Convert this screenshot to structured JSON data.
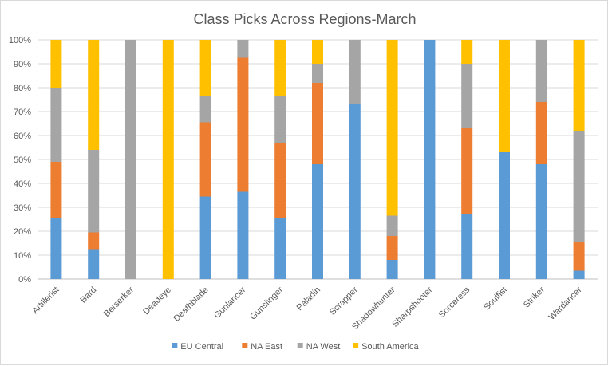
{
  "chart_data": {
    "type": "bar",
    "stacked": "percent",
    "title": "Class Picks Across Regions-March",
    "categories": [
      "Artillerist",
      "Bard",
      "Berserker",
      "Deadeye",
      "Deathblade",
      "Gunlancer",
      "Gunslinger",
      "Paladin",
      "Scrapper",
      "Shadowhunter",
      "Sharpshooter",
      "Sorceress",
      "Soulfist",
      "Striker",
      "Wardancer"
    ],
    "series": [
      {
        "name": "EU Central",
        "color": "#5b9bd5",
        "values": [
          25.5,
          12.5,
          0,
          0,
          34.5,
          36.5,
          25.5,
          48,
          73,
          8,
          100,
          27,
          53,
          48,
          3.5
        ]
      },
      {
        "name": "NA East",
        "color": "#ed7d31",
        "values": [
          23.5,
          7,
          0,
          0,
          31,
          56,
          31.5,
          34,
          0,
          10,
          0,
          36,
          0,
          26,
          12
        ]
      },
      {
        "name": "NA West",
        "color": "#a5a5a5",
        "values": [
          31,
          34.5,
          100,
          0,
          11,
          7.5,
          19.5,
          8,
          27,
          8.5,
          0,
          27,
          0,
          26,
          46.5
        ]
      },
      {
        "name": "South America",
        "color": "#ffc000",
        "values": [
          20,
          46,
          0,
          100,
          23.5,
          0,
          23.5,
          10,
          0,
          73.5,
          0,
          10,
          47,
          0,
          38
        ]
      }
    ],
    "ylim": [
      0,
      100
    ],
    "yticks": [
      "0%",
      "10%",
      "20%",
      "30%",
      "40%",
      "50%",
      "60%",
      "70%",
      "80%",
      "90%",
      "100%"
    ],
    "grid": true,
    "legend": "bottom"
  }
}
